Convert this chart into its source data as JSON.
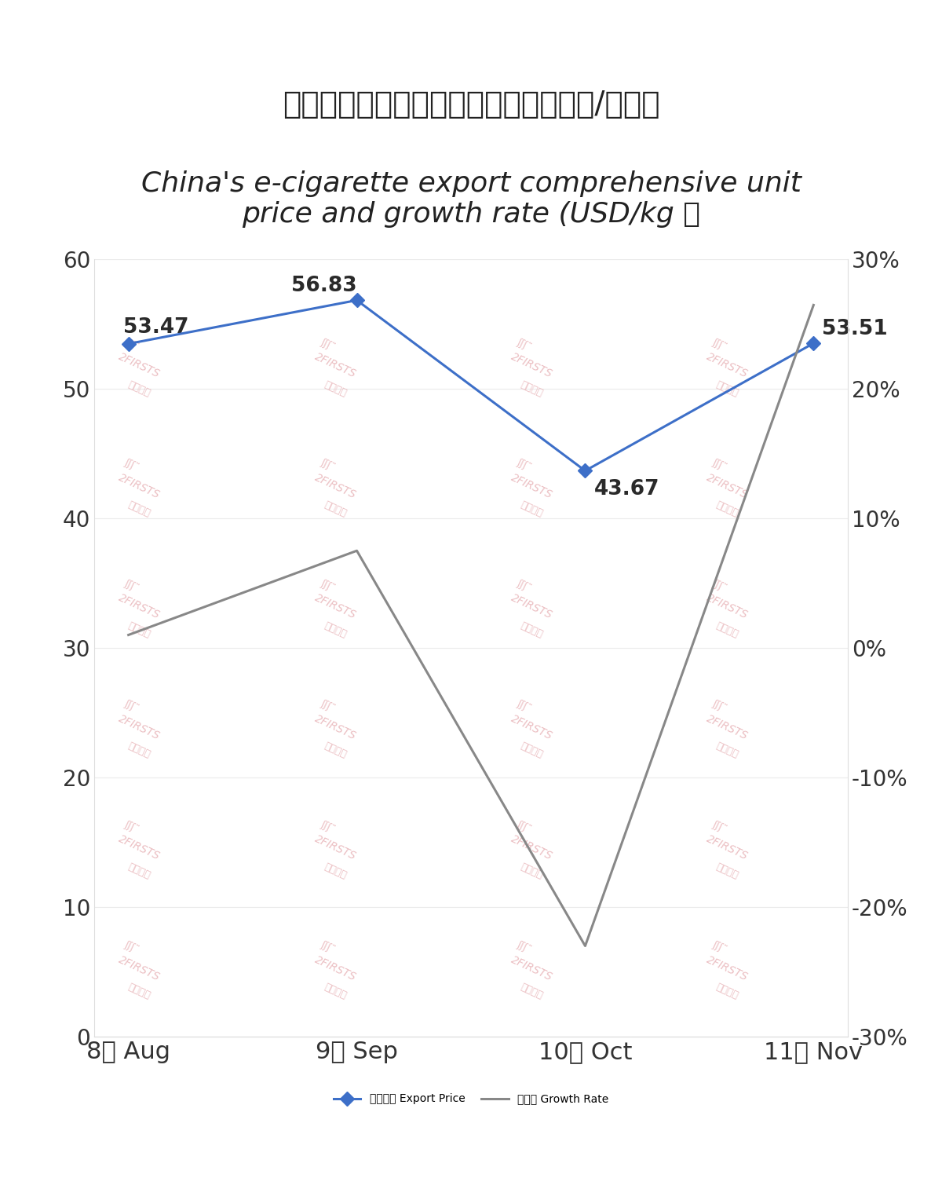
{
  "title_cn": "中国电子烟出口综合单价及增速（美元/千克）",
  "title_en": "China's e-cigarette export comprehensive unit\nprice and growth rate (USD/kg ）",
  "categories": [
    "8月 Aug",
    "9月 Sep",
    "10月 Oct",
    "11月 Nov"
  ],
  "export_price": [
    53.47,
    56.83,
    43.67,
    53.51
  ],
  "growth_rate": [
    1.0,
    7.5,
    -23.0,
    26.46
  ],
  "price_color": "#3d6fc8",
  "growth_color": "#888888",
  "left_ylim": [
    0,
    60
  ],
  "right_ylim": [
    -30,
    30
  ],
  "left_yticks": [
    0,
    10,
    20,
    30,
    40,
    50,
    60
  ],
  "right_yticks": [
    -30,
    -20,
    -10,
    0,
    10,
    20,
    30
  ],
  "right_ytick_labels": [
    "-30%",
    "-20%",
    "-10%",
    "0%",
    "10%",
    "20%",
    "30%"
  ],
  "legend_price": "出口单价 Export Price",
  "legend_growth": "增长率 Growth Rate",
  "background_color": "#ffffff",
  "watermark_line1": "2FIRSTS",
  "watermark_line2": "商个至上",
  "watermark_color": "#e8b4b8",
  "title_fontsize": 28,
  "label_fontsize": 22,
  "tick_fontsize": 20,
  "legend_fontsize": 20,
  "annotation_fontsize": 19
}
